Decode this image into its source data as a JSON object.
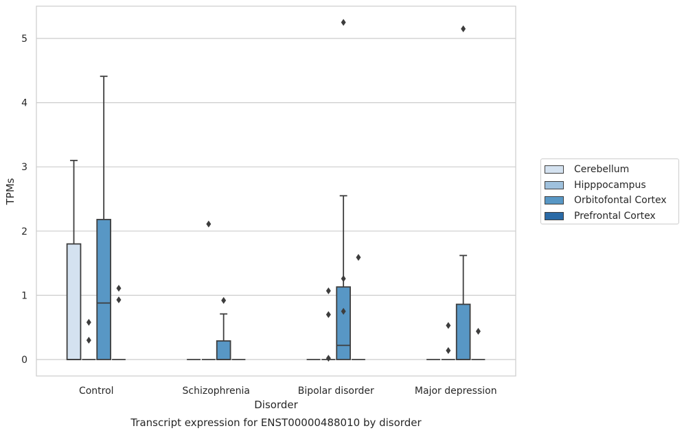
{
  "chart_data": {
    "type": "box",
    "title": "Transcript expression for ENST00000488010 by disorder",
    "xlabel": "Disorder",
    "ylabel": "TPMs",
    "ylim": [
      -0.25,
      5.5
    ],
    "yticks": [
      0,
      1,
      2,
      3,
      4,
      5
    ],
    "grid": "horizontal",
    "legend_position": "right",
    "categories": [
      "Control",
      "Schizophrenia",
      "Bipolar disorder",
      "Major depression"
    ],
    "series": [
      {
        "name": "Cerebellum",
        "color": "#d4e2f0",
        "boxes": [
          {
            "category": "Control",
            "q1": 0,
            "median": 0,
            "q3": 1.8,
            "whisker_low": 0,
            "whisker_high": 3.1,
            "outliers": []
          },
          {
            "category": "Schizophrenia",
            "q1": 0,
            "median": 0,
            "q3": 0,
            "whisker_low": 0,
            "whisker_high": 0,
            "outliers": []
          },
          {
            "category": "Bipolar disorder",
            "q1": 0,
            "median": 0,
            "q3": 0,
            "whisker_low": 0,
            "whisker_high": 0,
            "outliers": []
          },
          {
            "category": "Major depression",
            "q1": 0,
            "median": 0,
            "q3": 0,
            "whisker_low": 0,
            "whisker_high": 0,
            "outliers": []
          }
        ]
      },
      {
        "name": "Hipppocampus",
        "color": "#9fc1dd",
        "boxes": [
          {
            "category": "Control",
            "q1": 0,
            "median": 0,
            "q3": 0,
            "whisker_low": 0,
            "whisker_high": 0,
            "outliers": [
              0.3,
              0.58
            ]
          },
          {
            "category": "Schizophrenia",
            "q1": 0,
            "median": 0,
            "q3": 0,
            "whisker_low": 0,
            "whisker_high": 0,
            "outliers": [
              2.11
            ]
          },
          {
            "category": "Bipolar disorder",
            "q1": 0,
            "median": 0,
            "q3": 0,
            "whisker_low": 0,
            "whisker_high": 0,
            "outliers": [
              0.02,
              0.7,
              1.07
            ]
          },
          {
            "category": "Major depression",
            "q1": 0,
            "median": 0,
            "q3": 0,
            "whisker_low": 0,
            "whisker_high": 0,
            "outliers": [
              0.14,
              0.53
            ]
          }
        ]
      },
      {
        "name": "Orbitofontal Cortex",
        "color": "#5897c5",
        "boxes": [
          {
            "category": "Control",
            "q1": 0,
            "median": 0.88,
            "q3": 2.18,
            "whisker_low": 0,
            "whisker_high": 4.41,
            "outliers": []
          },
          {
            "category": "Schizophrenia",
            "q1": 0,
            "median": 0,
            "q3": 0.29,
            "whisker_low": 0,
            "whisker_high": 0.71,
            "outliers": [
              0.92
            ]
          },
          {
            "category": "Bipolar disorder",
            "q1": 0,
            "median": 0.22,
            "q3": 1.13,
            "whisker_low": 0,
            "whisker_high": 2.55,
            "outliers": [
              0.75,
              1.26,
              5.25
            ]
          },
          {
            "category": "Major depression",
            "q1": 0,
            "median": 0,
            "q3": 0.86,
            "whisker_low": 0,
            "whisker_high": 1.62,
            "outliers": [
              5.15
            ]
          }
        ]
      },
      {
        "name": "Prefrontal Cortex",
        "color": "#2a6aa6",
        "boxes": [
          {
            "category": "Control",
            "q1": 0,
            "median": 0,
            "q3": 0,
            "whisker_low": 0,
            "whisker_high": 0,
            "outliers": [
              0.93,
              1.11
            ]
          },
          {
            "category": "Schizophrenia",
            "q1": 0,
            "median": 0,
            "q3": 0,
            "whisker_low": 0,
            "whisker_high": 0,
            "outliers": []
          },
          {
            "category": "Bipolar disorder",
            "q1": 0,
            "median": 0,
            "q3": 0,
            "whisker_low": 0,
            "whisker_high": 0,
            "outliers": [
              1.59
            ]
          },
          {
            "category": "Major depression",
            "q1": 0,
            "median": 0,
            "q3": 0,
            "whisker_low": 0,
            "whisker_high": 0,
            "outliers": [
              0.44
            ]
          }
        ]
      }
    ]
  }
}
